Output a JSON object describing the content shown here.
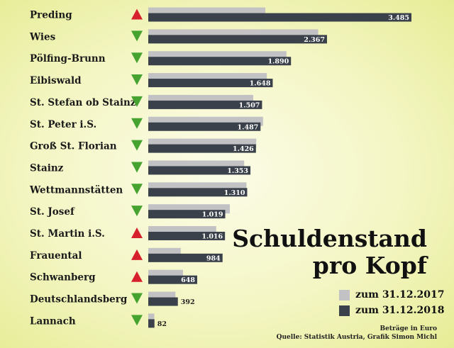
{
  "chart_data": {
    "type": "bar",
    "orientation": "horizontal",
    "title": "Schuldenstand pro Kopf",
    "title_lines": [
      "Schuldenstand",
      "pro Kopf"
    ],
    "categories": [
      "Preding",
      "Wies",
      "Pölfing-Brunn",
      "Eibiswald",
      "St. Stefan ob Stainz",
      "St. Peter i.S.",
      "Groß St. Florian",
      "Stainz",
      "Wettmannstätten",
      "St. Josef",
      "St. Martin i.S.",
      "Frauental",
      "Schwanberg",
      "Deutschlandsberg",
      "Lannach"
    ],
    "trend": [
      "up",
      "down",
      "down",
      "down",
      "down",
      "down",
      "down",
      "down",
      "down",
      "down",
      "up",
      "up",
      "up",
      "down",
      "down"
    ],
    "series": [
      {
        "name": "zum 31.12.2017",
        "values": [
          1550,
          2250,
          1830,
          1570,
          1390,
          1520,
          1430,
          1270,
          1300,
          1080,
          900,
          430,
          460,
          360,
          80
        ]
      },
      {
        "name": "zum 31.12.2018",
        "values": [
          3485,
          2367,
          1890,
          1648,
          1507,
          1487,
          1426,
          1353,
          1310,
          1019,
          1016,
          984,
          648,
          392,
          82
        ],
        "labels": [
          "3.485",
          "2.367",
          "1.890",
          "1.648",
          "1.507",
          "1.487",
          "1.426",
          "1.353",
          "1.310",
          "1.019",
          "1.016",
          "984",
          "648",
          "392",
          "82"
        ]
      }
    ],
    "legend_position": "bottom-right",
    "grid": false,
    "colors": {
      "2017": "#c2c2c4",
      "2018": "#3a414a",
      "up": "#d6202b",
      "down": "#47a32f"
    }
  },
  "notes": {
    "unit": "Beträge in Euro",
    "source": "Quelle: Statistik Austria, Grafik Simon Michl"
  }
}
